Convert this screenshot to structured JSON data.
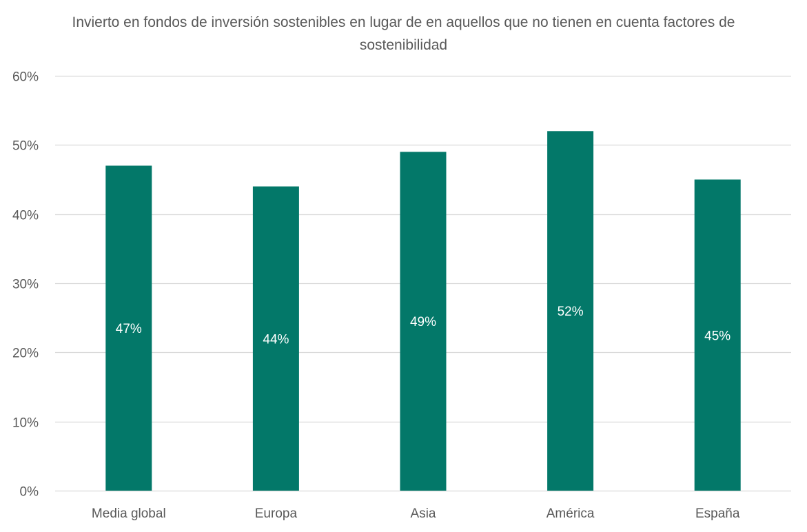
{
  "chart_data": {
    "type": "bar",
    "title": "Invierto en fondos de inversión sostenibles en lugar de en aquellos que no tienen en cuenta factores de sostenibilidad",
    "categories": [
      "Media global",
      "Europa",
      "Asia",
      "América",
      "España"
    ],
    "values": [
      47,
      44,
      49,
      52,
      45
    ],
    "data_labels": [
      "47%",
      "44%",
      "49%",
      "52%",
      "45%"
    ],
    "xlabel": "",
    "ylabel": "",
    "ylim": [
      0,
      60
    ],
    "yticks": [
      0,
      10,
      20,
      30,
      40,
      50,
      60
    ],
    "ytick_labels": [
      "0%",
      "10%",
      "20%",
      "30%",
      "40%",
      "50%",
      "60%"
    ],
    "grid": true,
    "legend": "none",
    "colors": {
      "bar": "#037869",
      "grid": "#D9D9D9",
      "text": "#595959",
      "data_label": "#FFFFFF"
    }
  }
}
